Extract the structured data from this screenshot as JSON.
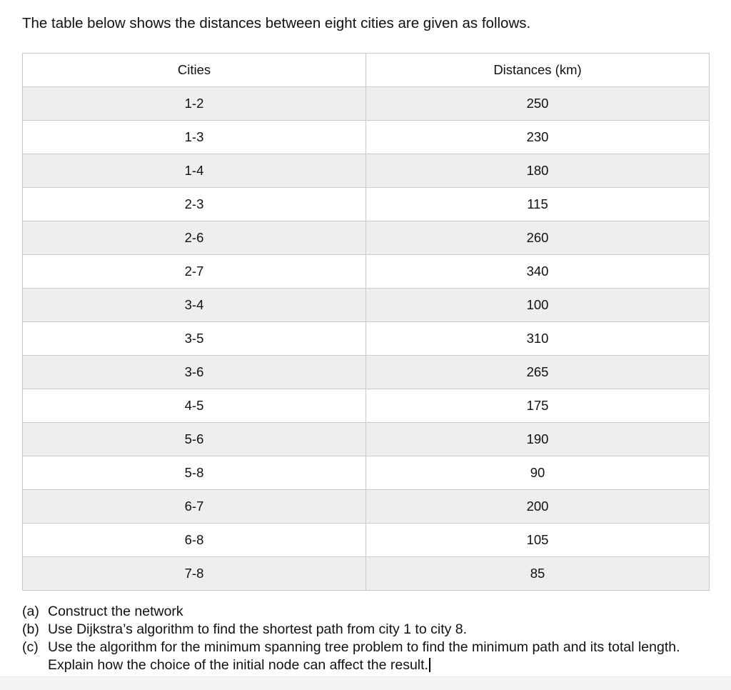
{
  "intro": "The table below shows the distances between eight cities are given as follows.",
  "table": {
    "headers": {
      "cities": "Cities",
      "distances": "Distances (km)"
    },
    "rows": [
      {
        "pair": "1-2",
        "km": "250"
      },
      {
        "pair": "1-3",
        "km": "230"
      },
      {
        "pair": "1-4",
        "km": "180"
      },
      {
        "pair": "2-3",
        "km": "115"
      },
      {
        "pair": "2-6",
        "km": "260"
      },
      {
        "pair": "2-7",
        "km": "340"
      },
      {
        "pair": "3-4",
        "km": "100"
      },
      {
        "pair": "3-5",
        "km": "310"
      },
      {
        "pair": "3-6",
        "km": "265"
      },
      {
        "pair": "4-5",
        "km": "175"
      },
      {
        "pair": "5-6",
        "km": "190"
      },
      {
        "pair": "5-8",
        "km": "90"
      },
      {
        "pair": "6-7",
        "km": "200"
      },
      {
        "pair": "6-8",
        "km": "105"
      },
      {
        "pair": "7-8",
        "km": "85"
      }
    ]
  },
  "questions": [
    {
      "label": "(a)",
      "text": "Construct the network"
    },
    {
      "label": "(b)",
      "text": "Use Dijkstra’s algorithm to find the shortest path from city 1 to city 8."
    },
    {
      "label": "(c)",
      "text": "Use the algorithm for the minimum spanning tree problem to find the minimum path and its total length. Explain how the choice of the initial node can affect the result."
    }
  ],
  "colors": {
    "row_stripe": "#eeeeee",
    "table_border": "#c9c9c9",
    "bottom_bar": "#f3f3f3",
    "text": "#111111"
  }
}
